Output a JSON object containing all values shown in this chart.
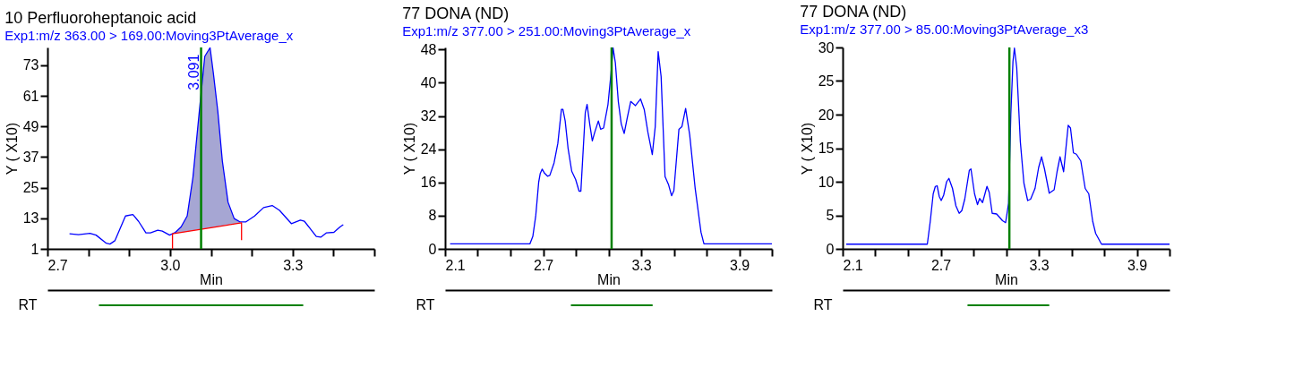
{
  "chart_data": [
    {
      "type": "line",
      "title": "10 Perfluoroheptanoic acid",
      "subtitle": "Exp1:m/z 363.00 > 169.00:Moving3PtAverage_x",
      "xlabel": "Min",
      "ylabel": "Y ( X10)",
      "xlim": [
        2.7,
        3.5
      ],
      "xticks": [
        2.7,
        {
          "value": 2.8,
          "label": null
        },
        {
          "value": 2.9,
          "label": null
        },
        {
          "value": 3.0,
          "label": "3.0"
        },
        {
          "value": 3.1,
          "label": null
        },
        {
          "value": 3.2,
          "label": null
        },
        3.3,
        {
          "value": 3.4,
          "label": null
        },
        {
          "value": 3.5,
          "label": null
        }
      ],
      "ylim": [
        1,
        80
      ],
      "yticks": [
        1,
        13,
        25,
        37,
        49,
        61,
        73
      ],
      "grid": false,
      "series": [
        {
          "color": "#0000ff",
          "lower": [
            null,
            null,
            null,
            null,
            null,
            null,
            null,
            null,
            null,
            null,
            null,
            null,
            null,
            null,
            null,
            7.1,
            7.4,
            7.8,
            8.2,
            8.6,
            8.9,
            9.2,
            9.4,
            9.7,
            10.0,
            10.4,
            10.7,
            11.1,
            null,
            null,
            null,
            null,
            null,
            null,
            null,
            null,
            null,
            null,
            null,
            null,
            null,
            null
          ],
          "upper": [
            null,
            null,
            null,
            null,
            null,
            null,
            null,
            null,
            null,
            null,
            null,
            null,
            null,
            null,
            null,
            7.5,
            9.6,
            13.9,
            29.0,
            53.8,
            76.5,
            79.9,
            70.0,
            54.9,
            35.5,
            19.3,
            12.9,
            11.6,
            null,
            null,
            null,
            null,
            null,
            null,
            null,
            null,
            null,
            null,
            null,
            null,
            null,
            null
          ],
          "x": [
            2.754,
            2.776,
            2.804,
            2.819,
            2.844,
            2.853,
            2.865,
            2.891,
            2.909,
            2.923,
            2.941,
            2.952,
            2.97,
            2.981,
            2.999,
            3.013,
            3.027,
            3.042,
            3.056,
            3.071,
            3.085,
            3.098,
            3.106,
            3.117,
            3.128,
            3.142,
            3.157,
            3.171,
            3.186,
            3.207,
            3.229,
            3.25,
            3.268,
            3.297,
            3.319,
            3.329,
            3.358,
            3.369,
            3.383,
            3.401,
            3.416,
            3.424
          ],
          "values": [
            6.9,
            6.6,
            7.1,
            6.4,
            3.2,
            2.9,
            4.2,
            13.9,
            14.5,
            11.8,
            7.3,
            7.3,
            8.3,
            8.0,
            6.4,
            7.5,
            9.6,
            13.9,
            29.0,
            53.8,
            76.5,
            79.9,
            70.0,
            54.9,
            35.5,
            19.3,
            12.9,
            11.6,
            11.6,
            13.9,
            17.2,
            18.0,
            16.1,
            10.9,
            12.3,
            11.8,
            5.9,
            5.6,
            7.3,
            7.5,
            9.6,
            10.5
          ]
        },
        {
          "color": "#ff0000",
          "x": [
            3.006,
            3.006,
            3.175,
            3.175
          ],
          "values": [
            1,
            6.9,
            11.2,
            4.4
          ]
        }
      ],
      "ref_lines": [
        {
          "axis": "x",
          "value": 3.076,
          "color": "#008000"
        }
      ],
      "annotations": [
        {
          "text": "3.091",
          "x": 3.076,
          "y": 71
        }
      ]
    },
    {
      "type": "line",
      "title": "77 DONA (ND)",
      "subtitle": "Exp1:m/z 377.00 > 251.00:Moving3PtAverage_x",
      "xlabel": "Min",
      "ylabel": "Y ( X10)",
      "xlim": [
        2.1,
        4.1
      ],
      "xticks": [
        2.1,
        {
          "value": 2.3,
          "label": null
        },
        {
          "value": 2.5,
          "label": null
        },
        2.7,
        {
          "value": 2.9,
          "label": null
        },
        {
          "value": 3.1,
          "label": null
        },
        3.3,
        {
          "value": 3.5,
          "label": null
        },
        {
          "value": 3.7,
          "label": null
        },
        3.9,
        {
          "value": 4.1,
          "label": null
        }
      ],
      "ylim": [
        0,
        48.5
      ],
      "yticks": [
        0,
        8,
        16,
        24,
        32,
        40,
        48
      ],
      "grid": false,
      "series": [
        {
          "color": "#0000ff",
          "x": [
            2.131,
            2.619,
            2.637,
            2.655,
            2.673,
            2.682,
            2.694,
            2.709,
            2.727,
            2.741,
            2.767,
            2.79,
            2.812,
            2.821,
            2.835,
            2.853,
            2.875,
            2.899,
            2.92,
            2.931,
            2.958,
            2.969,
            2.985,
            3.001,
            3.016,
            3.038,
            3.052,
            3.07,
            3.097,
            3.115,
            3.128,
            3.142,
            3.16,
            3.178,
            3.196,
            3.214,
            3.236,
            3.265,
            3.296,
            3.319,
            3.341,
            3.368,
            3.386,
            3.404,
            3.422,
            3.446,
            3.468,
            3.486,
            3.5,
            3.531,
            3.549,
            3.572,
            3.597,
            3.63,
            3.666,
            3.684,
            4.1
          ],
          "values": [
            1.2,
            1.2,
            3.0,
            8.0,
            16.1,
            18.1,
            19.2,
            18.2,
            17.5,
            17.7,
            20.7,
            25.4,
            33.6,
            33.6,
            30.8,
            24.1,
            18.7,
            16.7,
            13.9,
            13.9,
            32.8,
            34.8,
            30.1,
            26.0,
            28.1,
            30.8,
            28.8,
            29.1,
            34.8,
            42.1,
            48.4,
            44.8,
            35.5,
            30.1,
            27.8,
            31.4,
            35.5,
            34.5,
            36.1,
            33.5,
            28.1,
            22.7,
            29.4,
            47.5,
            41.5,
            17.4,
            15.4,
            12.8,
            14.0,
            28.8,
            29.4,
            33.8,
            27.4,
            14.7,
            4.0,
            1.2,
            1.2
          ]
        }
      ],
      "ref_lines": [
        {
          "axis": "x",
          "value": 3.119,
          "color": "#008000"
        }
      ]
    },
    {
      "type": "line",
      "title": "77 DONA (ND)",
      "subtitle": "Exp1:m/z 377.00 > 85.00:Moving3PtAverage_x3",
      "xlabel": "Min",
      "ylabel": "Y ( X10)",
      "xlim": [
        2.1,
        4.1
      ],
      "xticks": [
        2.1,
        {
          "value": 2.3,
          "label": null
        },
        {
          "value": 2.5,
          "label": null
        },
        2.7,
        {
          "value": 2.9,
          "label": null
        },
        {
          "value": 3.1,
          "label": null
        },
        3.3,
        {
          "value": 3.5,
          "label": null
        },
        {
          "value": 3.7,
          "label": null
        },
        3.9,
        {
          "value": 4.1,
          "label": null
        }
      ],
      "ylim": [
        0,
        30
      ],
      "yticks": [
        0,
        5,
        10,
        15,
        20,
        25,
        30
      ],
      "grid": false,
      "series": [
        {
          "color": "#0000ff",
          "x": [
            2.122,
            2.618,
            2.636,
            2.654,
            2.667,
            2.678,
            2.691,
            2.703,
            2.718,
            2.736,
            2.75,
            2.772,
            2.793,
            2.813,
            2.829,
            2.847,
            2.875,
            2.885,
            2.907,
            2.925,
            2.938,
            2.956,
            2.983,
            2.997,
            3.015,
            3.042,
            3.06,
            3.078,
            3.097,
            3.115,
            3.129,
            3.142,
            3.151,
            3.165,
            3.187,
            3.209,
            3.232,
            3.25,
            3.277,
            3.299,
            3.317,
            3.335,
            3.364,
            3.394,
            3.412,
            3.43,
            3.452,
            3.48,
            3.494,
            3.512,
            3.53,
            3.557,
            3.584,
            3.606,
            3.63,
            3.648,
            3.684,
            4.1
          ],
          "values": [
            0.7,
            0.7,
            4.1,
            8.2,
            9.3,
            9.4,
            7.8,
            7.2,
            8.0,
            10.0,
            10.5,
            9.0,
            6.4,
            5.3,
            5.7,
            7.4,
            11.7,
            11.9,
            8.2,
            6.6,
            7.5,
            6.9,
            9.3,
            8.4,
            5.3,
            5.2,
            4.7,
            4.2,
            3.9,
            6.8,
            20.1,
            27.9,
            29.9,
            27.0,
            16.0,
            9.8,
            7.2,
            7.4,
            9.0,
            12.1,
            13.7,
            11.9,
            8.3,
            8.8,
            11.5,
            13.7,
            11.5,
            18.4,
            18.0,
            14.3,
            14.1,
            13.1,
            9.0,
            8.2,
            4.1,
            2.3,
            0.7,
            0.7
          ]
        }
      ],
      "ref_lines": [
        {
          "axis": "x",
          "value": 3.12,
          "color": "#008000"
        }
      ]
    },
    {
      "type": "bar",
      "orientation": "horizontal",
      "categories": [
        "RT"
      ],
      "base": [
        2.826
      ],
      "values": [
        0.5
      ],
      "colors": [
        "#008000"
      ],
      "xlim": [
        2.7,
        3.5
      ],
      "tick_labels": "y"
    },
    {
      "type": "bar",
      "orientation": "horizontal",
      "categories": [
        "RT"
      ],
      "base": [
        2.87
      ],
      "values": [
        0.5
      ],
      "colors": [
        "#008000"
      ],
      "xlim": [
        2.1,
        4.1
      ],
      "tick_labels": "y"
    },
    {
      "type": "bar",
      "orientation": "horizontal",
      "categories": [
        "RT"
      ],
      "base": [
        2.864
      ],
      "values": [
        0.5
      ],
      "colors": [
        "#008000"
      ],
      "xlim": [
        2.1,
        4.1
      ],
      "tick_labels": "y"
    }
  ]
}
